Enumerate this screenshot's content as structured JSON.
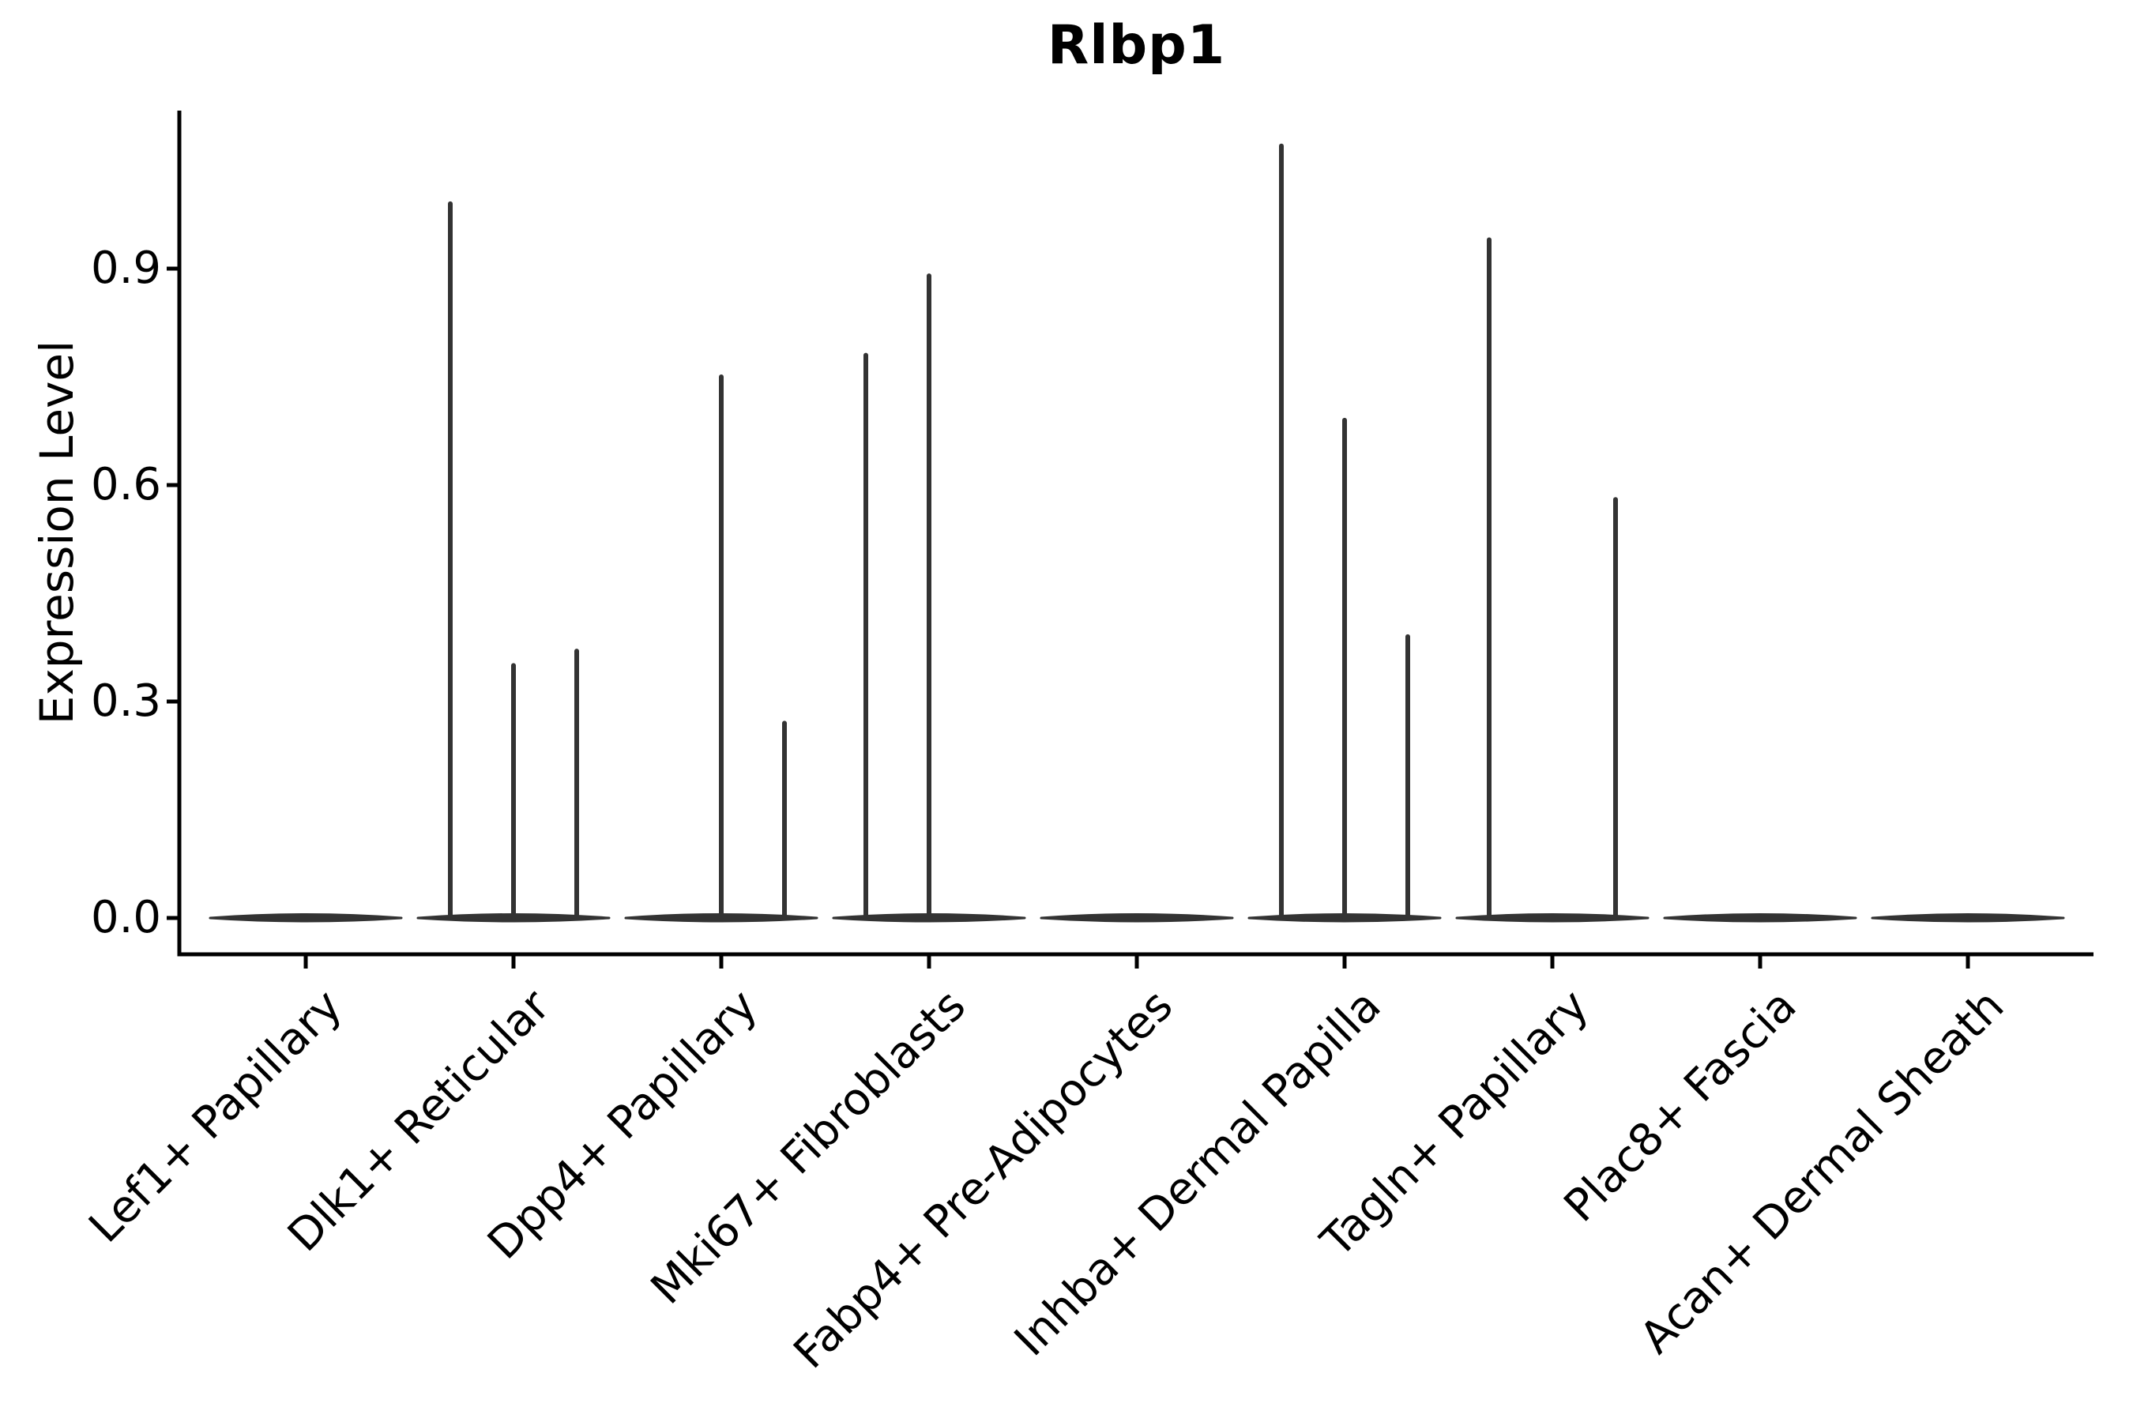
{
  "chart_data": {
    "type": "violin",
    "title": "Rlbp1",
    "xlabel": "",
    "ylabel": "Expression Level",
    "yticks": [
      0.0,
      0.3,
      0.6,
      0.9
    ],
    "ytick_labels": [
      "0.0",
      "0.3",
      "0.6",
      "0.9"
    ],
    "ylim": [
      -0.05,
      1.12
    ],
    "grid": false,
    "legend": "none",
    "categories": [
      "Lef1+ Papillary",
      "Dlk1+ Reticular",
      "Dpp4+ Papillary",
      "Mki67+ Fibroblasts",
      "Fabp4+ Pre-Adipocytes",
      "Inhba+ Dermal Papilla",
      "Tagln+ Papillary",
      "Plac8+ Fascia",
      "Acan+ Dermal Sheath"
    ],
    "violins": [
      {
        "category": "Lef1+ Papillary",
        "baseline": 0.0,
        "spikes": []
      },
      {
        "category": "Dlk1+ Reticular",
        "baseline": 0.0,
        "spikes": [
          {
            "pos": -1,
            "value": 0.99
          },
          {
            "pos": 0,
            "value": 0.35
          },
          {
            "pos": 1,
            "value": 0.37
          }
        ]
      },
      {
        "category": "Dpp4+ Papillary",
        "baseline": 0.0,
        "spikes": [
          {
            "pos": 0,
            "value": 0.75
          },
          {
            "pos": 1,
            "value": 0.27
          }
        ]
      },
      {
        "category": "Mki67+ Fibroblasts",
        "baseline": 0.0,
        "spikes": [
          {
            "pos": -1,
            "value": 0.78
          },
          {
            "pos": 0,
            "value": 0.89
          }
        ]
      },
      {
        "category": "Fabp4+ Pre-Adipocytes",
        "baseline": 0.0,
        "spikes": []
      },
      {
        "category": "Inhba+ Dermal Papilla",
        "baseline": 0.0,
        "spikes": [
          {
            "pos": -1,
            "value": 1.07
          },
          {
            "pos": 0,
            "value": 0.69
          },
          {
            "pos": 1,
            "value": 0.39
          }
        ]
      },
      {
        "category": "Tagln+ Papillary",
        "baseline": 0.0,
        "spikes": [
          {
            "pos": -1,
            "value": 0.94
          },
          {
            "pos": 1,
            "value": 0.58
          }
        ]
      },
      {
        "category": "Plac8+ Fascia",
        "baseline": 0.0,
        "spikes": []
      },
      {
        "category": "Acan+ Dermal Sheath",
        "baseline": 0.0,
        "spikes": []
      }
    ],
    "colors": {
      "violin": "#333333",
      "axis": "#000000",
      "text": "#000000",
      "background": "#ffffff"
    }
  }
}
